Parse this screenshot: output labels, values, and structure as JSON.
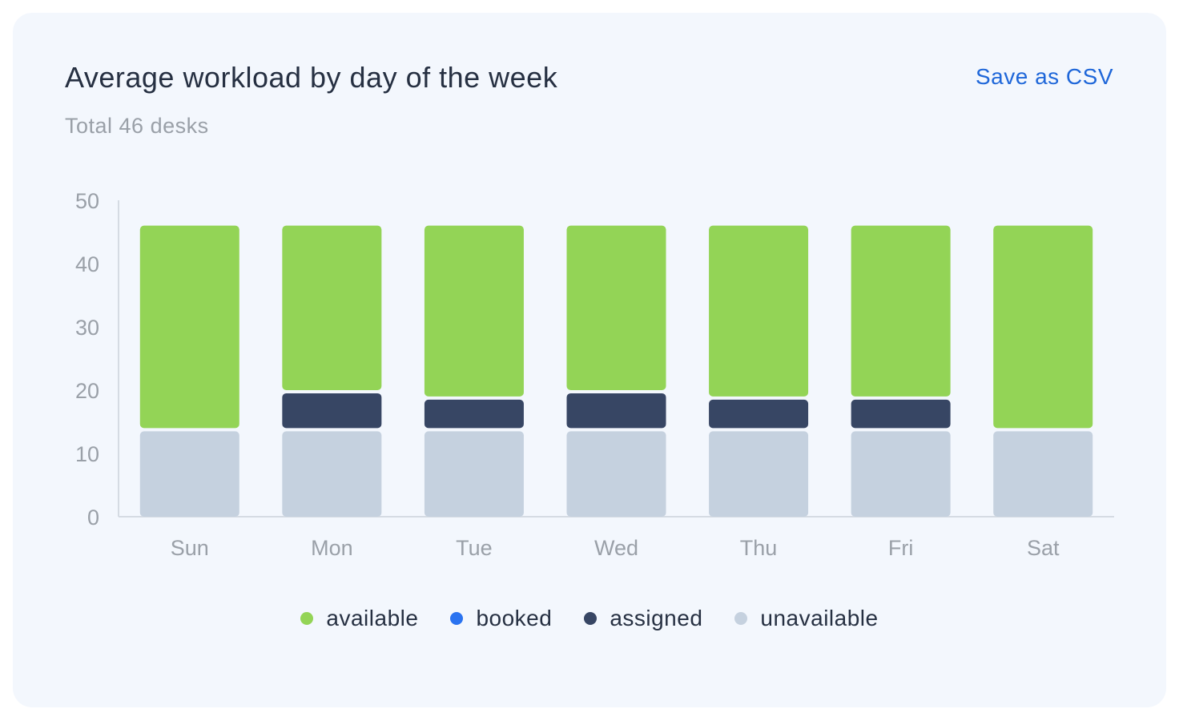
{
  "card": {
    "title": "Average workload by day of the week",
    "subtitle": "Total 46 desks",
    "save_csv_label": "Save as CSV"
  },
  "colors": {
    "available": "#93d456",
    "booked": "#2a73f0",
    "assigned": "#374664",
    "unavailable": "#c5d1df"
  },
  "chart_data": {
    "type": "bar",
    "stacked": true,
    "categories": [
      "Sun",
      "Mon",
      "Tue",
      "Wed",
      "Thu",
      "Fri",
      "Sat"
    ],
    "y_ticks": [
      "0",
      "10",
      "20",
      "30",
      "40",
      "50"
    ],
    "ylim": [
      0,
      50
    ],
    "grid": false,
    "legend_position": "bottom",
    "series": [
      {
        "name": "unavailable",
        "color": "#c5d1df",
        "values": [
          13.5,
          13.5,
          13.5,
          13.5,
          13.5,
          13.5,
          13.5
        ]
      },
      {
        "name": "assigned",
        "color": "#374664",
        "values": [
          0,
          6,
          5,
          6,
          5,
          5,
          0
        ]
      },
      {
        "name": "booked",
        "color": "#2a73f0",
        "values": [
          0,
          0,
          0,
          0,
          0,
          0,
          0
        ]
      },
      {
        "name": "available",
        "color": "#93d456",
        "values": [
          32.5,
          26.5,
          27.5,
          26.5,
          27.5,
          27.5,
          32.5
        ]
      }
    ]
  },
  "legend": [
    {
      "label": "available",
      "color": "#93d456"
    },
    {
      "label": "booked",
      "color": "#2a73f0"
    },
    {
      "label": "assigned",
      "color": "#374664"
    },
    {
      "label": "unavailable",
      "color": "#c5d1df"
    }
  ]
}
